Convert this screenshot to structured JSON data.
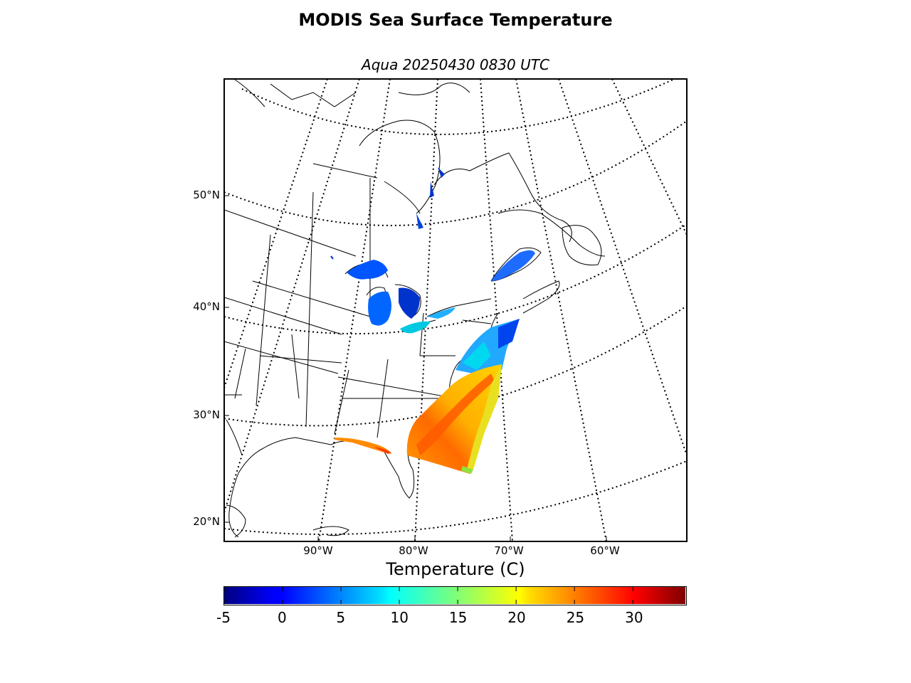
{
  "title": "MODIS Sea Surface Temperature",
  "subtitle": "Aqua 20250430 0830 UTC",
  "lat_labels": [
    "50°N",
    "40°N",
    "30°N",
    "20°N"
  ],
  "lon_labels": [
    "90°W",
    "80°W",
    "70°W",
    "60°W"
  ],
  "colorbar": {
    "label": "Temperature (C)",
    "ticks": [
      "-5",
      "0",
      "5",
      "10",
      "15",
      "20",
      "25",
      "30"
    ],
    "min": -5,
    "max": 34.5,
    "colormap": "jet"
  },
  "colors": {
    "cold": "#00008f",
    "cool": "#0066ff",
    "mild": "#00e5ff",
    "warm": "#ffd700",
    "hot": "#ff5a00",
    "coastline": "#000000",
    "graticule": "#000000"
  }
}
